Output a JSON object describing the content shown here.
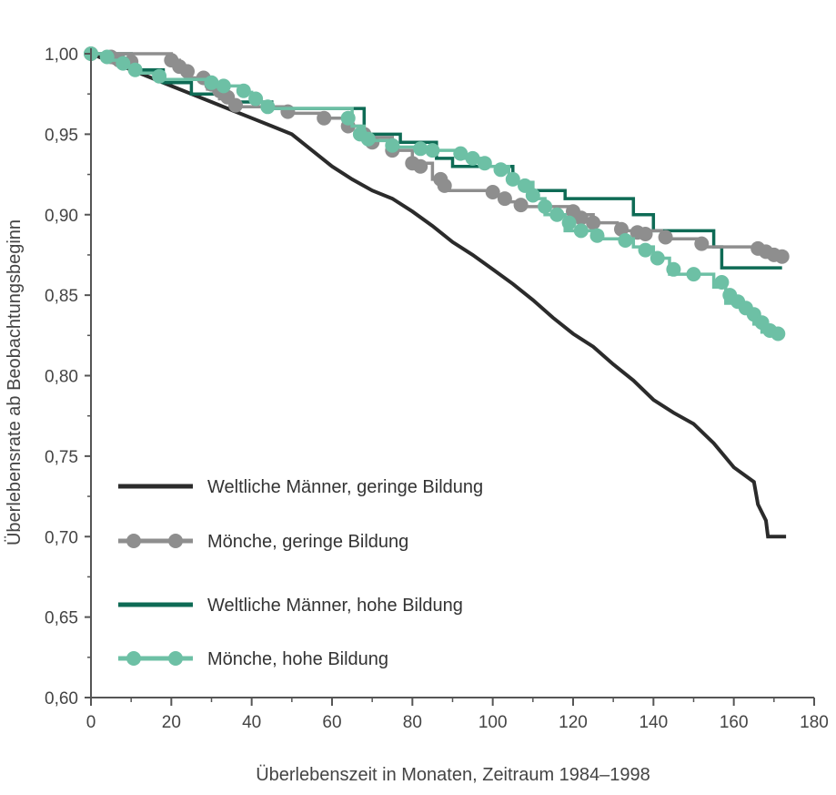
{
  "chart_data": {
    "type": "line",
    "step": true,
    "title": "",
    "xlabel": "Überlebenszeit in Monaten, Zeitraum 1984–1998",
    "ylabel": "Überlebensrate ab Beobachtungsbeginn",
    "xlim": [
      0,
      180
    ],
    "ylim": [
      0.6,
      1.0
    ],
    "x_ticks": [
      0,
      20,
      40,
      60,
      80,
      100,
      120,
      140,
      160,
      180
    ],
    "x_tick_labels": [
      "0",
      "20",
      "40",
      "60",
      "80",
      "100",
      "120",
      "140",
      "160",
      "180"
    ],
    "y_ticks": [
      0.6,
      0.65,
      0.7,
      0.75,
      0.8,
      0.85,
      0.9,
      0.95,
      1.0
    ],
    "y_tick_labels": [
      "0,60",
      "0,65",
      "0,70",
      "0,75",
      "0,80",
      "0,85",
      "0,90",
      "0,95",
      "1,00"
    ],
    "grid": false,
    "legend_position": "lower-left",
    "series": [
      {
        "name": "Weltliche Männer, geringe Bildung",
        "color": "#2b2b2b",
        "markers": false,
        "points": [
          [
            0,
            1.0
          ],
          [
            5,
            0.995
          ],
          [
            10,
            0.99
          ],
          [
            15,
            0.985
          ],
          [
            20,
            0.98
          ],
          [
            25,
            0.975
          ],
          [
            30,
            0.97
          ],
          [
            35,
            0.965
          ],
          [
            40,
            0.96
          ],
          [
            45,
            0.955
          ],
          [
            50,
            0.95
          ],
          [
            55,
            0.94
          ],
          [
            60,
            0.93
          ],
          [
            65,
            0.922
          ],
          [
            70,
            0.915
          ],
          [
            75,
            0.91
          ],
          [
            80,
            0.902
          ],
          [
            85,
            0.893
          ],
          [
            90,
            0.883
          ],
          [
            95,
            0.875
          ],
          [
            100,
            0.866
          ],
          [
            105,
            0.857
          ],
          [
            110,
            0.847
          ],
          [
            115,
            0.836
          ],
          [
            120,
            0.826
          ],
          [
            125,
            0.818
          ],
          [
            130,
            0.807
          ],
          [
            135,
            0.797
          ],
          [
            140,
            0.785
          ],
          [
            145,
            0.777
          ],
          [
            150,
            0.77
          ],
          [
            155,
            0.758
          ],
          [
            160,
            0.743
          ],
          [
            165,
            0.734
          ],
          [
            166,
            0.72
          ],
          [
            168,
            0.71
          ],
          [
            168.5,
            0.7
          ],
          [
            173,
            0.7
          ]
        ]
      },
      {
        "name": "Mönche, geringe Bildung",
        "color": "#8e8e8e",
        "markers": true,
        "points": [
          [
            0,
            1.0
          ],
          [
            20,
            1.0
          ],
          [
            20,
            0.996
          ],
          [
            22,
            0.996
          ],
          [
            22,
            0.99
          ],
          [
            25,
            0.99
          ],
          [
            25,
            0.985
          ],
          [
            29,
            0.985
          ],
          [
            29,
            0.978
          ],
          [
            32,
            0.978
          ],
          [
            32,
            0.972
          ],
          [
            35,
            0.972
          ],
          [
            35,
            0.967
          ],
          [
            48,
            0.967
          ],
          [
            48,
            0.963
          ],
          [
            58,
            0.963
          ],
          [
            58,
            0.96
          ],
          [
            64,
            0.96
          ],
          [
            64,
            0.955
          ],
          [
            67,
            0.955
          ],
          [
            67,
            0.948
          ],
          [
            75,
            0.948
          ],
          [
            75,
            0.94
          ],
          [
            80,
            0.94
          ],
          [
            80,
            0.932
          ],
          [
            85,
            0.932
          ],
          [
            85,
            0.922
          ],
          [
            88,
            0.922
          ],
          [
            88,
            0.915
          ],
          [
            100,
            0.915
          ],
          [
            100,
            0.912
          ],
          [
            104,
            0.912
          ],
          [
            104,
            0.908
          ],
          [
            107,
            0.908
          ],
          [
            107,
            0.905
          ],
          [
            120,
            0.905
          ],
          [
            120,
            0.9
          ],
          [
            125,
            0.9
          ],
          [
            125,
            0.895
          ],
          [
            131,
            0.895
          ],
          [
            131,
            0.89
          ],
          [
            142,
            0.89
          ],
          [
            142,
            0.885
          ],
          [
            152,
            0.885
          ],
          [
            152,
            0.88
          ],
          [
            166,
            0.88
          ],
          [
            166,
            0.876
          ],
          [
            170,
            0.876
          ],
          [
            170,
            0.874
          ],
          [
            173,
            0.874
          ]
        ],
        "marker_points": [
          [
            0,
            1.0
          ],
          [
            5,
            0.998
          ],
          [
            7,
            0.996
          ],
          [
            10,
            0.995
          ],
          [
            20,
            0.996
          ],
          [
            22,
            0.992
          ],
          [
            24,
            0.989
          ],
          [
            28,
            0.985
          ],
          [
            30,
            0.981
          ],
          [
            32,
            0.977
          ],
          [
            34,
            0.973
          ],
          [
            36,
            0.968
          ],
          [
            49,
            0.964
          ],
          [
            58,
            0.96
          ],
          [
            64,
            0.955
          ],
          [
            68,
            0.95
          ],
          [
            70,
            0.945
          ],
          [
            75,
            0.94
          ],
          [
            80,
            0.932
          ],
          [
            82,
            0.93
          ],
          [
            87,
            0.922
          ],
          [
            88,
            0.918
          ],
          [
            100,
            0.914
          ],
          [
            103,
            0.91
          ],
          [
            107,
            0.906
          ],
          [
            120,
            0.902
          ],
          [
            122,
            0.898
          ],
          [
            125,
            0.895
          ],
          [
            132,
            0.891
          ],
          [
            136,
            0.889
          ],
          [
            138,
            0.888
          ],
          [
            143,
            0.886
          ],
          [
            152,
            0.882
          ],
          [
            166,
            0.879
          ],
          [
            168,
            0.877
          ],
          [
            170,
            0.875
          ],
          [
            172,
            0.874
          ]
        ]
      },
      {
        "name": "Weltliche Männer, hohe Bildung",
        "color": "#0e6b55",
        "markers": false,
        "points": [
          [
            0,
            1.0
          ],
          [
            10,
            1.0
          ],
          [
            10,
            0.99
          ],
          [
            18,
            0.99
          ],
          [
            18,
            0.982
          ],
          [
            25,
            0.982
          ],
          [
            25,
            0.975
          ],
          [
            35,
            0.975
          ],
          [
            35,
            0.97
          ],
          [
            45,
            0.97
          ],
          [
            45,
            0.966
          ],
          [
            68,
            0.966
          ],
          [
            68,
            0.95
          ],
          [
            77,
            0.95
          ],
          [
            77,
            0.945
          ],
          [
            86,
            0.945
          ],
          [
            86,
            0.935
          ],
          [
            90,
            0.935
          ],
          [
            90,
            0.93
          ],
          [
            105,
            0.93
          ],
          [
            105,
            0.92
          ],
          [
            110,
            0.92
          ],
          [
            110,
            0.915
          ],
          [
            118,
            0.915
          ],
          [
            118,
            0.91
          ],
          [
            135,
            0.91
          ],
          [
            135,
            0.9
          ],
          [
            140,
            0.9
          ],
          [
            140,
            0.89
          ],
          [
            155,
            0.89
          ],
          [
            155,
            0.88
          ],
          [
            157,
            0.88
          ],
          [
            157,
            0.867
          ],
          [
            172,
            0.867
          ]
        ]
      },
      {
        "name": "Mönche, hohe Bildung",
        "color": "#6dc0a5",
        "markers": true,
        "points": [
          [
            0,
            1.0
          ],
          [
            3,
            1.0
          ],
          [
            3,
            0.996
          ],
          [
            7,
            0.996
          ],
          [
            7,
            0.992
          ],
          [
            10,
            0.992
          ],
          [
            10,
            0.988
          ],
          [
            17,
            0.988
          ],
          [
            17,
            0.984
          ],
          [
            30,
            0.984
          ],
          [
            30,
            0.98
          ],
          [
            37,
            0.98
          ],
          [
            37,
            0.976
          ],
          [
            40,
            0.976
          ],
          [
            40,
            0.97
          ],
          [
            43,
            0.97
          ],
          [
            43,
            0.966
          ],
          [
            65,
            0.966
          ],
          [
            65,
            0.955
          ],
          [
            68,
            0.955
          ],
          [
            68,
            0.946
          ],
          [
            75,
            0.946
          ],
          [
            75,
            0.942
          ],
          [
            82,
            0.942
          ],
          [
            82,
            0.94
          ],
          [
            92,
            0.94
          ],
          [
            92,
            0.935
          ],
          [
            98,
            0.935
          ],
          [
            98,
            0.93
          ],
          [
            104,
            0.93
          ],
          [
            104,
            0.92
          ],
          [
            110,
            0.92
          ],
          [
            110,
            0.91
          ],
          [
            113,
            0.91
          ],
          [
            113,
            0.9
          ],
          [
            118,
            0.9
          ],
          [
            118,
            0.89
          ],
          [
            125,
            0.89
          ],
          [
            125,
            0.885
          ],
          [
            135,
            0.885
          ],
          [
            135,
            0.88
          ],
          [
            140,
            0.88
          ],
          [
            140,
            0.873
          ],
          [
            144,
            0.873
          ],
          [
            144,
            0.863
          ],
          [
            155,
            0.863
          ],
          [
            155,
            0.855
          ],
          [
            158,
            0.855
          ],
          [
            158,
            0.845
          ],
          [
            162,
            0.845
          ],
          [
            162,
            0.84
          ],
          [
            165,
            0.84
          ],
          [
            165,
            0.832
          ],
          [
            167,
            0.832
          ],
          [
            167,
            0.827
          ],
          [
            172,
            0.827
          ]
        ],
        "marker_points": [
          [
            0,
            1.0
          ],
          [
            4,
            0.998
          ],
          [
            8,
            0.994
          ],
          [
            11,
            0.99
          ],
          [
            17,
            0.986
          ],
          [
            30,
            0.982
          ],
          [
            33,
            0.98
          ],
          [
            38,
            0.977
          ],
          [
            41,
            0.972
          ],
          [
            44,
            0.967
          ],
          [
            64,
            0.96
          ],
          [
            67,
            0.95
          ],
          [
            69,
            0.947
          ],
          [
            75,
            0.943
          ],
          [
            82,
            0.941
          ],
          [
            85,
            0.94
          ],
          [
            92,
            0.938
          ],
          [
            95,
            0.935
          ],
          [
            98,
            0.932
          ],
          [
            102,
            0.928
          ],
          [
            105,
            0.922
          ],
          [
            108,
            0.918
          ],
          [
            110,
            0.912
          ],
          [
            113,
            0.905
          ],
          [
            116,
            0.9
          ],
          [
            119,
            0.895
          ],
          [
            122,
            0.89
          ],
          [
            126,
            0.887
          ],
          [
            133,
            0.884
          ],
          [
            138,
            0.878
          ],
          [
            141,
            0.873
          ],
          [
            145,
            0.866
          ],
          [
            150,
            0.863
          ],
          [
            157,
            0.858
          ],
          [
            159,
            0.85
          ],
          [
            161,
            0.846
          ],
          [
            163,
            0.842
          ],
          [
            165,
            0.838
          ],
          [
            167,
            0.833
          ],
          [
            169,
            0.828
          ],
          [
            171,
            0.826
          ]
        ]
      }
    ]
  }
}
